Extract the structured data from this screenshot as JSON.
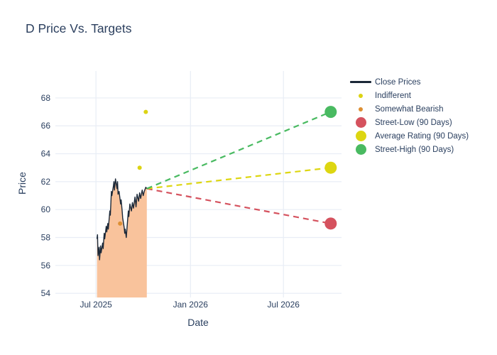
{
  "title": "D Price Vs. Targets",
  "axes": {
    "x_label": "Date",
    "y_label": "Price"
  },
  "colors": {
    "text": "#2a3f5f",
    "grid": "#e8edf5",
    "background": "#ffffff",
    "close_line": "#1b2838",
    "close_fill": "#f9c39c",
    "indifferent": "#dcd313",
    "somewhat_bearish": "#dd8f33",
    "street_low": "#d5525e",
    "average_rating": "#ddd611",
    "street_high": "#49ba61"
  },
  "legend": {
    "items": [
      {
        "label": "Close Prices",
        "swatch": "line",
        "color": "#1b2838"
      },
      {
        "label": "Indifferent",
        "swatch": "dot-sm",
        "color": "#dcd313"
      },
      {
        "label": "Somewhat Bearish",
        "swatch": "dot-sm",
        "color": "#dd8f33"
      },
      {
        "label": "Street-Low (90 Days)",
        "swatch": "dot-lg",
        "color": "#d5525e"
      },
      {
        "label": "Average Rating (90 Days)",
        "swatch": "dot-lg",
        "color": "#ddd611"
      },
      {
        "label": "Street-High (90 Days)",
        "swatch": "dot-lg",
        "color": "#49ba61"
      }
    ]
  },
  "chart_data": {
    "type": "line",
    "title": "D Price Vs. Targets",
    "xlabel": "Date",
    "ylabel": "Price",
    "grid": true,
    "legend_position": "right",
    "x_axis": {
      "range": [
        "2025-04-13",
        "2026-10-22"
      ],
      "ticks": [
        {
          "date": "2025-07-01",
          "label": "Jul 2025"
        },
        {
          "date": "2026-01-01",
          "label": "Jan 2026"
        },
        {
          "date": "2026-07-01",
          "label": "Jul 2026"
        }
      ]
    },
    "y_axis": {
      "range": [
        53.7,
        69.93
      ],
      "ticks": [
        54,
        56,
        58,
        60,
        62,
        64,
        66,
        68
      ]
    },
    "close_prices": {
      "name": "Close Prices",
      "key": "close-prices",
      "color": "#1b2838",
      "fill_color": "#f9c39c",
      "dates": [
        "2025-07-03",
        "2025-07-04",
        "2025-07-05",
        "2025-07-07",
        "2025-07-08",
        "2025-07-10",
        "2025-07-11",
        "2025-07-14",
        "2025-07-15",
        "2025-07-17",
        "2025-07-18",
        "2025-07-21",
        "2025-07-22",
        "2025-07-24",
        "2025-07-25",
        "2025-07-28",
        "2025-07-29",
        "2025-07-31",
        "2025-08-01",
        "2025-08-04",
        "2025-08-05",
        "2025-08-06",
        "2025-08-08",
        "2025-08-11",
        "2025-08-12",
        "2025-08-13",
        "2025-08-15",
        "2025-08-18",
        "2025-08-19",
        "2025-08-21",
        "2025-08-22",
        "2025-08-25",
        "2025-08-26",
        "2025-08-27",
        "2025-08-29",
        "2025-09-02",
        "2025-09-03",
        "2025-09-05",
        "2025-09-08",
        "2025-09-10",
        "2025-09-12",
        "2025-09-15",
        "2025-09-17",
        "2025-09-19",
        "2025-09-22",
        "2025-09-24",
        "2025-09-26",
        "2025-09-29",
        "2025-10-01",
        "2025-10-03",
        "2025-10-06",
        "2025-10-08"
      ],
      "prices": [
        57.9,
        58.2,
        56.7,
        57.3,
        56.4,
        57.4,
        56.9,
        57.6,
        57.2,
        58.3,
        57.9,
        58.8,
        58.4,
        59.0,
        58.6,
        59.9,
        59.6,
        61.3,
        61.0,
        61.7,
        62.0,
        61.4,
        62.2,
        61.5,
        62.0,
        61.1,
        61.3,
        60.4,
        60.7,
        59.9,
        59.4,
        58.7,
        58.3,
        58.6,
        58.0,
        59.9,
        59.5,
        60.4,
        59.9,
        60.5,
        60.1,
        60.9,
        60.2,
        61.1,
        60.6,
        61.2,
        60.8,
        61.4,
        61.0,
        61.3,
        61.6,
        61.5
      ]
    },
    "ratings": [
      {
        "name": "Indifferent",
        "key": "indifferent",
        "color": "#dcd313",
        "points": [
          {
            "date": "2025-09-24",
            "price": 63
          },
          {
            "date": "2025-10-06",
            "price": 67
          }
        ]
      },
      {
        "name": "Somewhat Bearish",
        "key": "somewhat-bearish",
        "color": "#dd8f33",
        "points": [
          {
            "date": "2025-08-17",
            "price": 59
          }
        ]
      }
    ],
    "targets": [
      {
        "name": "Street-Low (90 Days)",
        "key": "street-low",
        "color": "#d5525e",
        "price": 59,
        "date": "2026-10-01",
        "from": {
          "date": "2025-10-08",
          "price": 61.5
        }
      },
      {
        "name": "Average Rating (90 Days)",
        "key": "average-rating",
        "color": "#ddd611",
        "price": 63,
        "date": "2026-10-01",
        "from": {
          "date": "2025-10-08",
          "price": 61.5
        }
      },
      {
        "name": "Street-High (90 Days)",
        "key": "street-high",
        "color": "#49ba61",
        "price": 67,
        "date": "2026-10-01",
        "from": {
          "date": "2025-10-08",
          "price": 61.5
        }
      }
    ]
  }
}
